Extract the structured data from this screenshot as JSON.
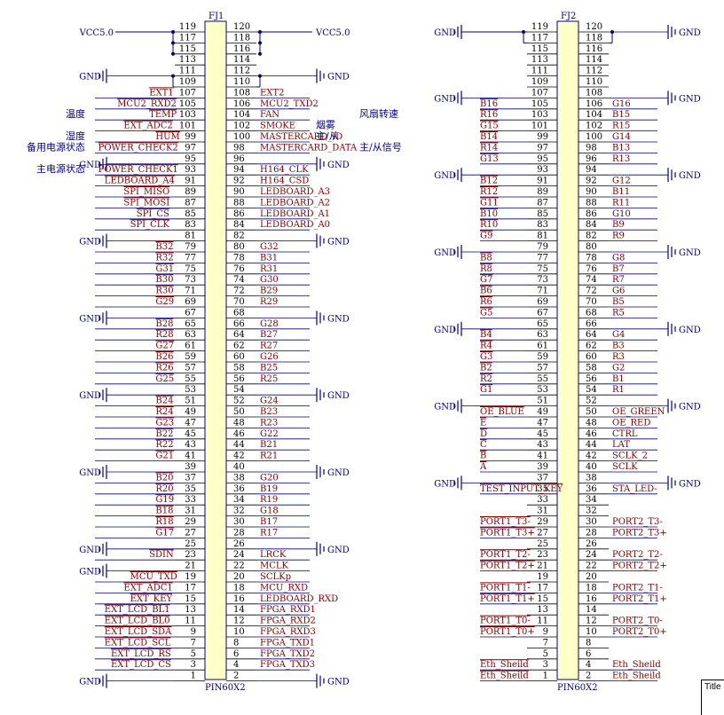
{
  "colors": {
    "wire": "#000080",
    "pin": "#000000",
    "label": "#800000",
    "body": "#ffffc8",
    "note": "#000080"
  },
  "gnd_label": "GND",
  "vcc_label": "VCC5.0",
  "title_block_label": "Title",
  "connectors": [
    {
      "ref": "FJ1",
      "part": "PIN60X2",
      "left_labels": {
        "105": "MCU2_RXD2",
        "103": "TEMP",
        "101": "EXT_ADC2",
        "99": "HUM",
        "97": "POWER_CHECK2",
        "93": "POWER_CHECK1",
        "91": "LEDBOARD_A4",
        "89": "SPI_MISO",
        "87": "SPI_MOSI",
        "85": "SPI_CS",
        "83": "SPI_CLK",
        "79": "B32",
        "77": "R32",
        "75": "G31",
        "73": "B30",
        "71": "R30",
        "69": "G29",
        "65": "B28",
        "63": "R28",
        "61": "G27",
        "59": "B26",
        "57": "R26",
        "55": "G25",
        "51": "B24",
        "49": "R24",
        "47": "G23",
        "45": "B22",
        "43": "R22",
        "41": "G21",
        "37": "B20",
        "35": "R20",
        "33": "G19",
        "31": "B18",
        "29": "R18",
        "27": "G17",
        "23": "SDIN",
        "19": "MCU_TXD",
        "17": "EXT_ADC1",
        "15": "EXT_KEY",
        "13": "EXT_LCD_BL1",
        "11": "EXT_LCD_BL0",
        "9": "EXT_LCD_SDA",
        "7": "EXT_LCD_SCL",
        "5": "EXT_LCD_RS",
        "3": "EXT_LCD_CS",
        "107": "EXT1"
      },
      "right_labels": {
        "108": "EXT2",
        "106": "MCU2_TXD2",
        "104": "FAN",
        "102": "SMOKE",
        "100": "MASTERCARD_ID",
        "98": "MASTERCARD_DATA",
        "94": "H164_CLK",
        "92": "H164_CSD",
        "90": "LEDBOARD_A3",
        "88": "LEDBOARD_A2",
        "86": "LEDBOARD_A1",
        "84": "LEDBOARD_A0",
        "80": "G32",
        "78": "B31",
        "76": "R31",
        "74": "G30",
        "72": "B29",
        "70": "R29",
        "66": "G28",
        "64": "B27",
        "62": "R27",
        "60": "G26",
        "58": "B25",
        "56": "R25",
        "52": "G24",
        "50": "B23",
        "48": "R23",
        "46": "G22",
        "44": "B21",
        "42": "R21",
        "38": "G20",
        "36": "B19",
        "34": "R19",
        "32": "G18",
        "30": "B17",
        "28": "R17",
        "24": "LRCK",
        "22": "MCLK",
        "20": "SCLKp",
        "18": "MCU_RXD",
        "16": "LEDBOARD_RXD",
        "14": "FPGA_RXD1",
        "12": "FPGA_RXD2",
        "10": "FPGA_RXD3",
        "8": "FPGA_TXD1",
        "6": "FPGA_TXD2",
        "4": "FPGA_TXD3"
      },
      "left_gnd_rows": [
        111,
        95,
        81,
        67,
        53,
        39,
        25,
        21,
        1
      ],
      "right_gnd_rows": [
        112,
        96,
        82,
        68,
        54,
        40,
        26,
        2
      ],
      "notes": [
        {
          "text": "温度",
          "row": 103,
          "side": "left"
        },
        {
          "text": "湿度",
          "row": 99,
          "side": "left"
        },
        {
          "text": "备用电源状态",
          "row": 97,
          "side": "left"
        },
        {
          "text": "主电源状态",
          "row": 93,
          "side": "left"
        },
        {
          "text": "风扇转速",
          "row": 104,
          "side": "right"
        },
        {
          "text": "烟雾",
          "row": 102,
          "side": "right"
        },
        {
          "text": "主/从",
          "row": 100,
          "side": "right"
        },
        {
          "text": "主/从信号",
          "row": 98,
          "side": "right"
        }
      ]
    },
    {
      "ref": "FJ2",
      "part": "PIN60X2",
      "left_labels": {
        "105": "B16",
        "103": "R16",
        "101": "G15",
        "99": "B14",
        "97": "R14",
        "95": "G13",
        "91": "B12",
        "89": "R12",
        "87": "G11",
        "85": "B10",
        "83": "R10",
        "81": "G9",
        "77": "B8",
        "75": "R8",
        "73": "G7",
        "71": "B6",
        "69": "R6",
        "67": "G5",
        "63": "B4",
        "61": "R4",
        "59": "G3",
        "57": "B2",
        "55": "R2",
        "53": "G1",
        "49": "OE_BLUE",
        "47": "E",
        "45": "D",
        "43": "C",
        "41": "B",
        "39": "A",
        "35": "TEST_INPUT_KEY",
        "29": "PORT1_T3-",
        "27": "PORT1_T3+",
        "23": "PORT1_T2-",
        "21": "PORT1_T2+",
        "17": "PORT1_T1-",
        "15": "PORT1_T1+",
        "11": "PORT1_T0-",
        "9": "PORT1_T0+",
        "3": "Eth_Sheild",
        "1": "Eth_Sheild"
      },
      "right_labels": {
        "106": "G16",
        "104": "B15",
        "102": "R15",
        "100": "G14",
        "98": "B13",
        "96": "R13",
        "92": "G12",
        "90": "B11",
        "88": "R11",
        "86": "G10",
        "84": "B9",
        "82": "R9",
        "78": "G8",
        "76": "B7",
        "74": "R7",
        "72": "G6",
        "70": "B5",
        "68": "R5",
        "64": "G4",
        "62": "B3",
        "60": "R3",
        "58": "G2",
        "56": "B1",
        "54": "R1",
        "50": "OE_GREEN",
        "48": "OE_RED",
        "46": "CTRL",
        "44": "LAT",
        "42": "SCLK_2",
        "40": "SCLK",
        "36": "STA_LED-",
        "30": "PORT2_T3-",
        "28": "PORT2_T3+",
        "24": "PORT2_T2-",
        "22": "PORT2_T2+",
        "18": "PORT2_T1-",
        "16": "PORT2_T1+",
        "12": "PORT2_T0-",
        "10": "PORT2_T0+",
        "4": "Eth_Sheild",
        "2": "Eth_Sheild"
      },
      "left_gnd_rows": [
        107,
        93,
        79,
        65,
        51,
        37
      ],
      "right_gnd_rows": [
        120,
        108,
        94,
        80,
        66,
        52,
        38
      ],
      "notes": []
    }
  ]
}
